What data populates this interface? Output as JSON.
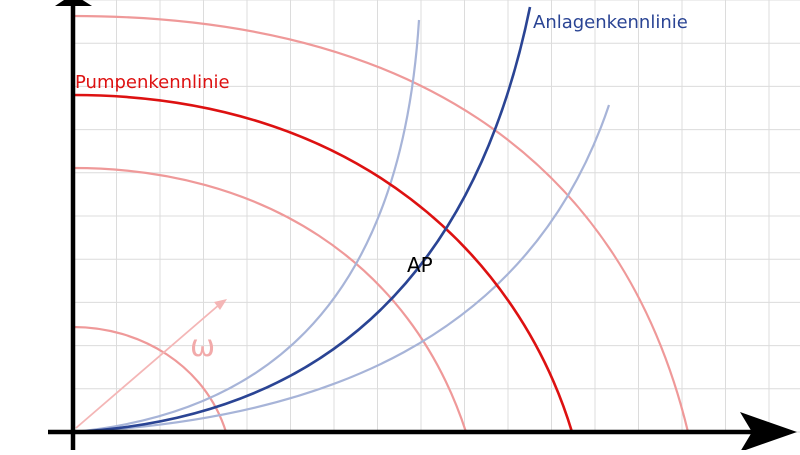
{
  "labels": {
    "pump_curve": "Pumpenkennlinie",
    "system_curve": "Anlagenkennlinie",
    "operating_point": "AP",
    "omega": "ω"
  },
  "colors": {
    "grid": "#dcdcdc",
    "axis": "#000000",
    "pump_main": "#dd1111",
    "pump_faint": "#ef9999",
    "system_main": "#2a4494",
    "system_faint": "#a7b4d8",
    "omega_arrow": "#f4b6b6",
    "omega_text": "#f2aaaa",
    "ap_text": "#000000"
  }
}
